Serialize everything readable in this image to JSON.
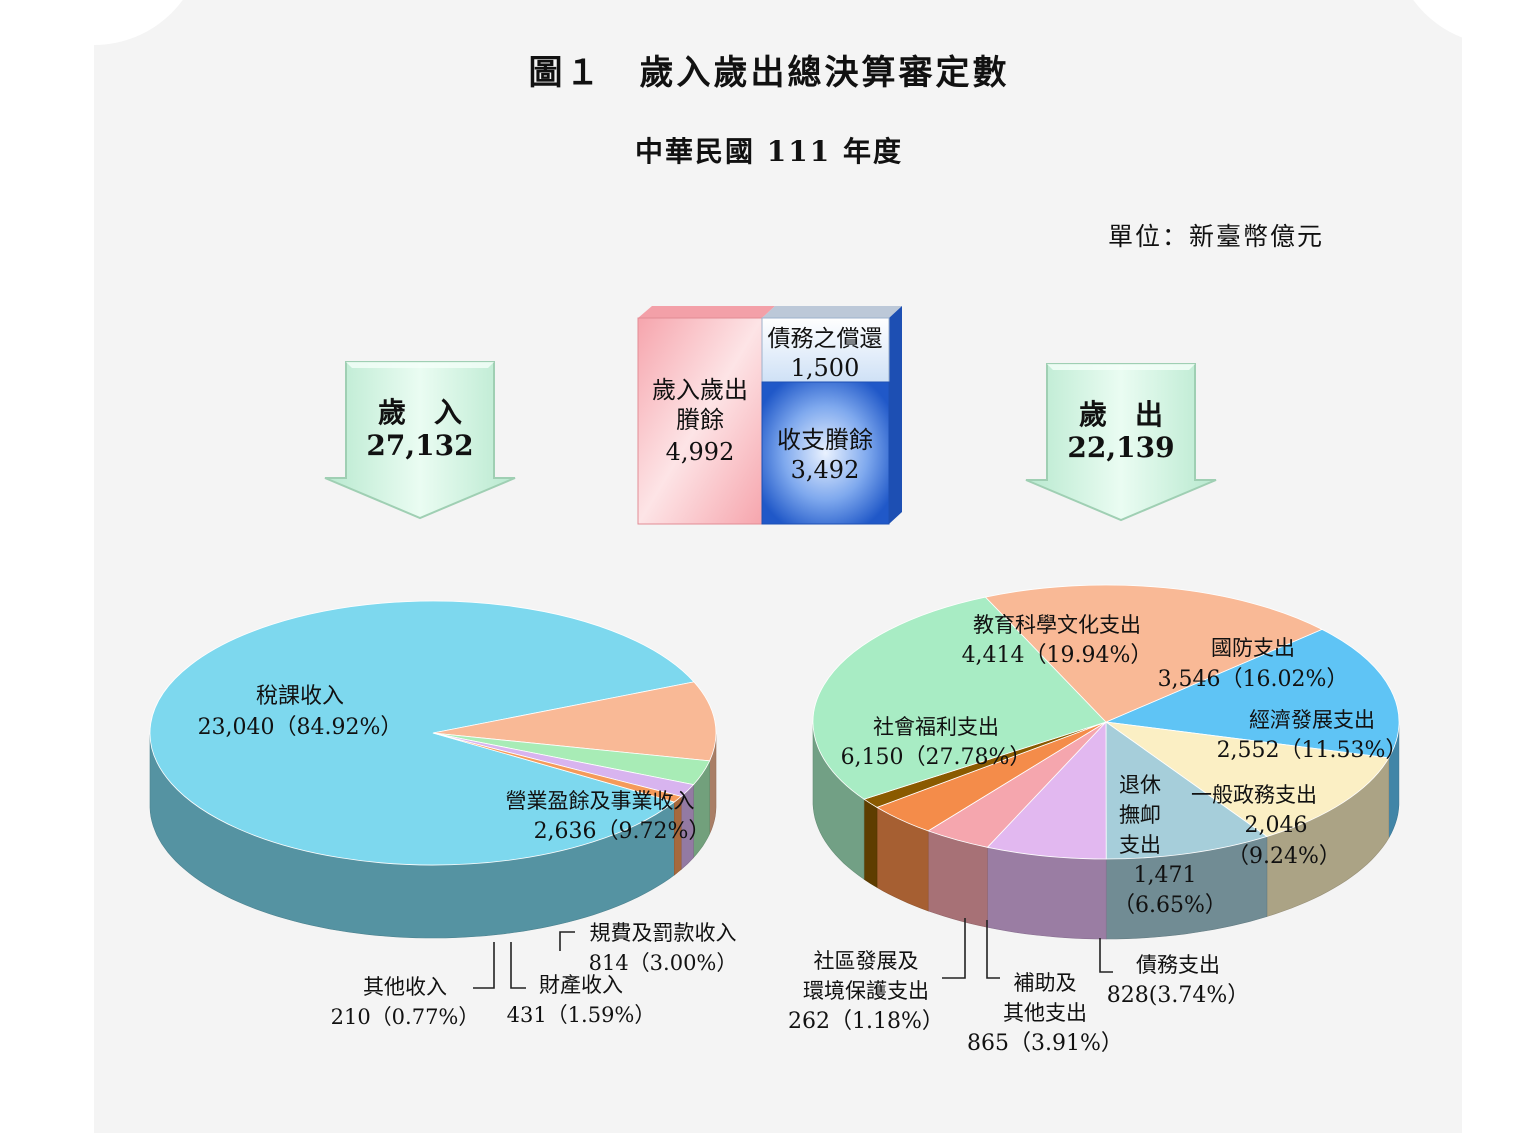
{
  "title": "圖１　歲入歲出總決算審定數",
  "subtitle": "中華民國 111 年度",
  "unit": "單位：新臺幣億元",
  "revenue_box": {
    "label": "歲　入",
    "value": "27,132"
  },
  "expenditure_box": {
    "label": "歲　出",
    "value": "22,139"
  },
  "surplus_box": {
    "left_lines": [
      "歲入歲出",
      "賸餘",
      "4,992"
    ],
    "debt_lines": [
      "債務之償還",
      "1,500"
    ],
    "balance_lines": [
      "收支賸餘",
      "3,492"
    ]
  },
  "colors": {
    "tax": "#7dd8ee",
    "business": "#f9b996",
    "fees": "#a8ecb6",
    "property": "#d8b4ef",
    "other_rev": "#f59a5a",
    "education": "#f9b996",
    "defense": "#5fc4f5",
    "economic": "#fbefc4",
    "general_gov": "#a6ceda",
    "pension": "#e2b8f0",
    "debt": "#f5a6ae",
    "subsidy": "#f48c4a",
    "community": "#8a5a00",
    "welfare": "#a8ecc4",
    "surplus_pink": "#f8b3b8",
    "surplus_blue": "#2f6fd6",
    "arrow_fill": "#d4f7e4"
  },
  "chart_data": [
    {
      "type": "pie",
      "name": "歲入",
      "total": 27132,
      "slices": [
        {
          "label": "稅課收入",
          "value": 23040,
          "percent": "84.92%",
          "text": "23,040（84.92%）",
          "color_key": "tax"
        },
        {
          "label": "營業盈餘及事業收入",
          "value": 2636,
          "percent": "9.72%",
          "text": "2,636（9.72%）",
          "color_key": "business"
        },
        {
          "label": "規費及罰款收入",
          "value": 814,
          "percent": "3.00%",
          "text": "814（3.00%）",
          "color_key": "fees"
        },
        {
          "label": "財產收入",
          "value": 431,
          "percent": "1.59%",
          "text": "431（1.59%）",
          "color_key": "property"
        },
        {
          "label": "其他收入",
          "value": 210,
          "percent": "0.77%",
          "text": "210（0.77%）",
          "color_key": "other_rev"
        }
      ]
    },
    {
      "type": "pie",
      "name": "歲出",
      "total": 22139,
      "slices": [
        {
          "label": "國防支出",
          "value": 3546,
          "percent": "16.02%",
          "text": "3,546（16.02%）",
          "color_key": "defense"
        },
        {
          "label": "經濟發展支出",
          "value": 2552,
          "percent": "11.53%",
          "text": "2,552（11.53%）",
          "color_key": "economic"
        },
        {
          "label": "一般政務支出",
          "value": 2046,
          "percent": "9.24%",
          "text": "（9.24%）",
          "value_text": "2,046",
          "color_key": "general_gov"
        },
        {
          "label": "退休撫卹支出",
          "value": 1471,
          "percent": "6.65%",
          "text": "（6.65%）",
          "value_text": "1,471",
          "color_key": "pension"
        },
        {
          "label": "債務支出",
          "value": 828,
          "percent": "3.74%",
          "text": "828(3.74%）",
          "color_key": "debt"
        },
        {
          "label": "補助及其他支出",
          "value": 865,
          "percent": "3.91%",
          "text": "865（3.91%）",
          "color_key": "subsidy"
        },
        {
          "label": "社區發展及環境保護支出",
          "value": 262,
          "percent": "1.18%",
          "text": "262（1.18%）",
          "color_key": "community"
        },
        {
          "label": "社會福利支出",
          "value": 6150,
          "percent": "27.78%",
          "text": "6,150（27.78%）",
          "color_key": "welfare"
        },
        {
          "label": "教育科學文化支出",
          "value": 4414,
          "percent": "19.94%",
          "text": "4,414（19.94%）",
          "color_key": "education"
        }
      ]
    }
  ],
  "label_lines": {
    "pension": [
      "退休",
      "撫卹",
      "支出"
    ],
    "subsidy": [
      "補助及",
      "其他支出"
    ],
    "community": [
      "社區發展及",
      "環境保護支出"
    ]
  }
}
